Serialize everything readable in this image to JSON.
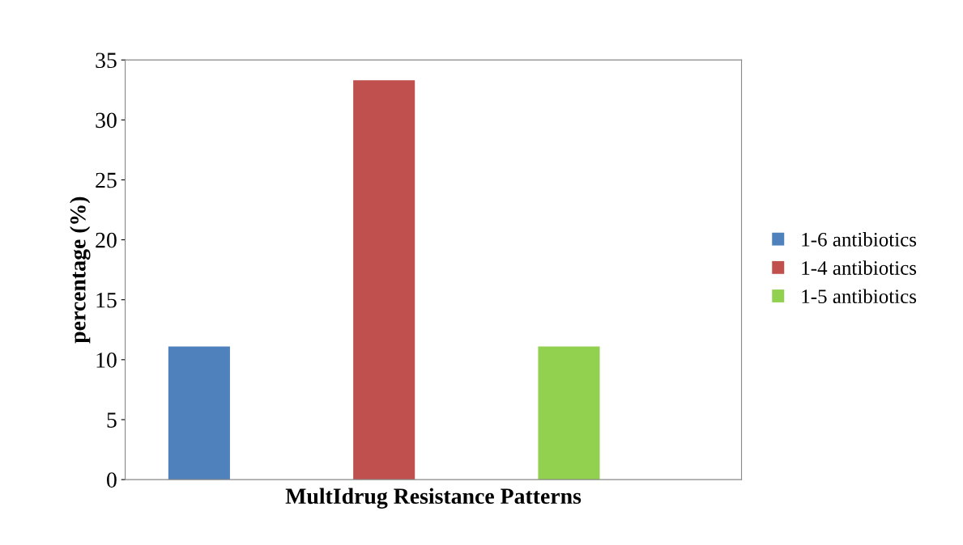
{
  "chart_data": {
    "type": "bar",
    "xlabel": "MultIdrug Resistance Patterns",
    "ylabel": "percentage (%)",
    "categories": [
      null
    ],
    "series": [
      {
        "name": "1-6 antibiotics",
        "color": "#4f81bd",
        "values": [
          11.1
        ]
      },
      {
        "name": "1-4 antibiotics",
        "color": "#c0504d",
        "values": [
          33.3
        ]
      },
      {
        "name": "1-5 antibiotics",
        "color": "#92d050",
        "values": [
          11.1
        ]
      }
    ],
    "ylim": [
      0,
      35
    ],
    "yticks": [
      0,
      5,
      10,
      15,
      20,
      25,
      30,
      35
    ],
    "grid": false,
    "legend": "right"
  }
}
